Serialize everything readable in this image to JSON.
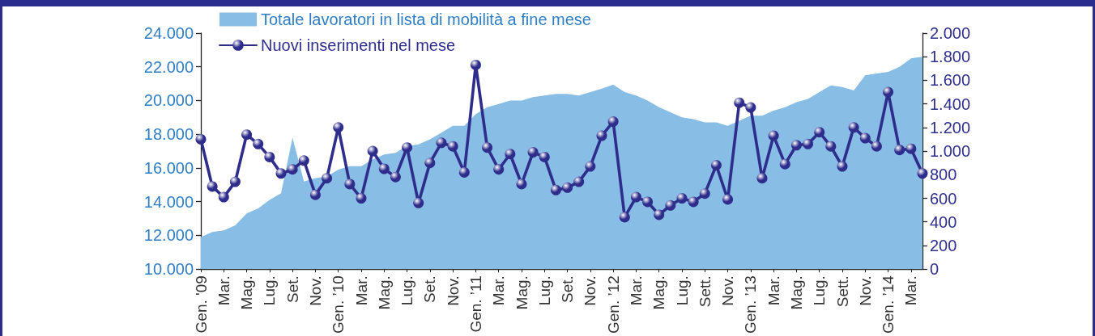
{
  "chart_data": {
    "type": "area",
    "categories": [
      "Gen. '09",
      null,
      "Mar.",
      null,
      "Mag.",
      null,
      "Lug.",
      null,
      "Set.",
      null,
      "Nov.",
      null,
      "Gen. ’10",
      null,
      "Mar.",
      null,
      "Mag.",
      null,
      "Lug.",
      null,
      "Set.",
      null,
      "Nov.",
      null,
      "Gen. ’11",
      null,
      "Mar.",
      null,
      "Mag.",
      null,
      "Lug.",
      null,
      "Set.",
      null,
      "Nov.",
      null,
      "Gen. ’12",
      null,
      "Mar.",
      null,
      "Mag.",
      null,
      "Lug.",
      null,
      "Sett.",
      null,
      "Nov.",
      null,
      "Gen. ’13",
      null,
      "Mar.",
      null,
      "Mag.",
      null,
      "Lug.",
      null,
      "Sett.",
      null,
      "Nov.",
      null,
      "Gen. ’14",
      null,
      "Mar.",
      null
    ],
    "series": [
      {
        "name": "Totale lavoratori in lista di mobilità a fine mese",
        "color": "#88bde6",
        "values": [
          11900,
          12200,
          12300,
          12600,
          13300,
          13600,
          14100,
          14500,
          17800,
          15200,
          15400,
          15500,
          15900,
          16100,
          16100,
          16500,
          16800,
          16900,
          17300,
          17400,
          17700,
          18100,
          18500,
          18500,
          19200,
          19600,
          19800,
          20000,
          20000,
          20200,
          20300,
          20400,
          20400,
          20300,
          20500,
          20700,
          20950,
          20500,
          20300,
          20000,
          19600,
          19300,
          19000,
          18900,
          18700,
          18700,
          18500,
          18800,
          19100,
          19100,
          19400,
          19600,
          19900,
          20100,
          20500,
          20900,
          20800,
          20600,
          21500,
          21600,
          21700,
          22000,
          22500,
          22600
        ]
      },
      {
        "name": "Nuovi inserimenti nel mese",
        "type": "line",
        "axis": "y2",
        "color": "#2e2d8c",
        "marker": "circle",
        "line_style": "solid",
        "values": [
          1100,
          700,
          610,
          740,
          1140,
          1060,
          950,
          810,
          845,
          920,
          630,
          770,
          1200,
          720,
          600,
          1000,
          850,
          780,
          1030,
          560,
          900,
          1070,
          1040,
          820,
          1730,
          1030,
          845,
          975,
          720,
          990,
          950,
          670,
          690,
          740,
          870,
          1130,
          1250,
          440,
          610,
          570,
          460,
          540,
          600,
          570,
          640,
          880,
          590,
          1410,
          1370,
          770,
          1130,
          890,
          1050,
          1060,
          1160,
          1040,
          870,
          1200,
          1110,
          1040,
          1500,
          1010,
          1020,
          810
        ]
      }
    ],
    "ylim": [
      10000,
      24000
    ],
    "yticks": [
      {
        "value": 10000,
        "label": "10.000"
      },
      {
        "value": 12000,
        "label": "12.000"
      },
      {
        "value": 14000,
        "label": "14.000"
      },
      {
        "value": 16000,
        "label": "16.000"
      },
      {
        "value": 18000,
        "label": "18.000"
      },
      {
        "value": 20000,
        "label": "20.000"
      },
      {
        "value": 22000,
        "label": "22.000"
      },
      {
        "value": 24000,
        "label": "24.000"
      }
    ],
    "y2lim": [
      0,
      2000
    ],
    "y2ticks": [
      0,
      200,
      400,
      600,
      800,
      {
        "value": 1000,
        "label": "1.000"
      },
      {
        "value": 1200,
        "label": "1.200"
      },
      {
        "value": 1400,
        "label": "1.400"
      },
      {
        "value": 1600,
        "label": "1.600"
      },
      {
        "value": 1800,
        "label": "1.800"
      },
      {
        "value": 2000,
        "label": "2.000"
      }
    ],
    "grid": false,
    "legend": "top left"
  }
}
